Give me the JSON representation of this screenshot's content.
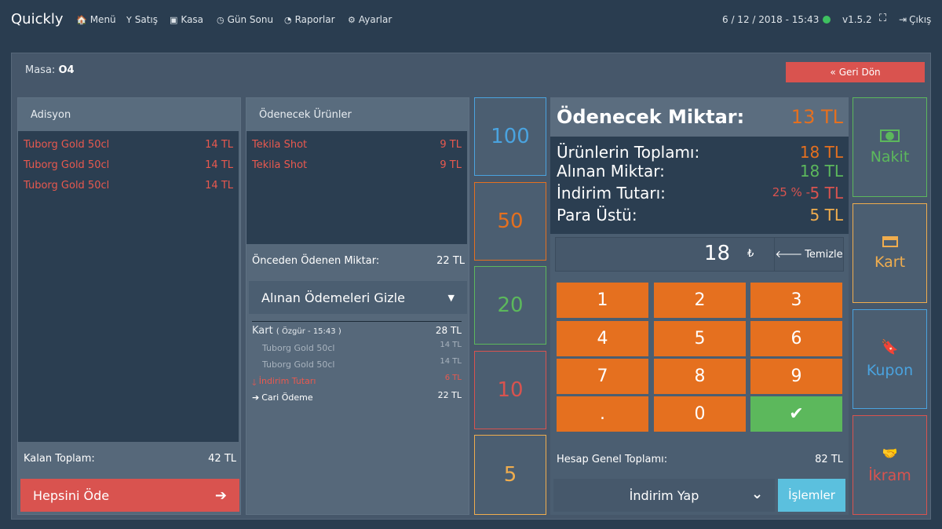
{
  "app": {
    "brand": "Quickly"
  },
  "nav": {
    "items": [
      {
        "icon": "home-icon",
        "glyph": "🏠",
        "label": "Menü"
      },
      {
        "icon": "cocktail-icon",
        "glyph": "🍸",
        "label": "Satış"
      },
      {
        "icon": "cash-icon",
        "glyph": "💵",
        "label": "Kasa"
      },
      {
        "icon": "clock-icon",
        "glyph": "◷",
        "label": "Gün Sonu"
      },
      {
        "icon": "pie-chart-icon",
        "glyph": "◔",
        "label": "Raporlar"
      },
      {
        "icon": "cogs-icon",
        "glyph": "⚙",
        "label": "Ayarlar"
      }
    ],
    "datetime": "6 / 12 / 2018 - 15:43",
    "version": "v1.5.2",
    "logout": "Çıkış"
  },
  "table": {
    "label": "Masa:",
    "name": "O4",
    "back_label": "Geri Dön"
  },
  "adisyon": {
    "title": "Adisyon",
    "items": [
      {
        "name": "Tuborg Gold 50cl",
        "price": "14 TL"
      },
      {
        "name": "Tuborg Gold 50cl",
        "price": "14 TL"
      },
      {
        "name": "Tuborg Gold 50cl",
        "price": "14 TL"
      }
    ],
    "remaining_label": "Kalan Toplam:",
    "remaining_value": "42 TL",
    "pay_all_label": "Hepsini Öde"
  },
  "to_pay": {
    "title": "Ödenecek Ürünler",
    "items": [
      {
        "name": "Tekila Shot",
        "price": "9 TL"
      },
      {
        "name": "Tekila Shot",
        "price": "9 TL"
      }
    ],
    "prev_paid_label": "Önceden Ödenen Miktar:",
    "prev_paid_value": "22 TL",
    "toggle_label": "Alınan Ödemeleri Gizle",
    "payments": {
      "method": "Kart",
      "meta": "( Özgür - 15:43 )",
      "total": "28 TL",
      "lines": [
        {
          "name": "Tuborg Gold 50cl",
          "price": "14 TL"
        },
        {
          "name": "Tuborg Gold 50cl",
          "price": "14 TL"
        }
      ],
      "discount_label": "İndirim Tutarı",
      "discount_value": "6 TL",
      "account_label": "Cari Ödeme",
      "account_value": "22 TL"
    }
  },
  "quick_amounts": [
    {
      "value": "100",
      "color": "#4aa3df"
    },
    {
      "value": "50",
      "color": "#e5701f"
    },
    {
      "value": "20",
      "color": "#5cb85c"
    },
    {
      "value": "10",
      "color": "#d9534f"
    },
    {
      "value": "5",
      "color": "#f0ad4e"
    }
  ],
  "summary": {
    "amount_label": "Ödenecek Miktar:",
    "amount_value": "13 TL",
    "total_label": "Ürünlerin Toplamı:",
    "total_value": "18 TL",
    "received_label": "Alınan Miktar:",
    "received_value": "18 TL",
    "discount_label": "İndirim Tutarı:",
    "discount_pct": "25 % -",
    "discount_value": "5 TL",
    "change_label": "Para Üstü:",
    "change_value": "5 TL"
  },
  "entry": {
    "value": "18",
    "currency": "₺",
    "clear_label": "Temizle"
  },
  "keypad": [
    "1",
    "2",
    "3",
    "4",
    "5",
    "6",
    "7",
    "8",
    "9",
    ".",
    "0",
    "✔"
  ],
  "footer": {
    "grand_total_label": "Hesap Genel Toplamı:",
    "grand_total_value": "82 TL",
    "discount_select": "İndirim Yap",
    "operations_label": "İşlemler"
  },
  "payment_methods": [
    {
      "label": "Nakit",
      "icon": "cash-icon",
      "color": "#5cb85c"
    },
    {
      "label": "Kart",
      "icon": "credit-card-icon",
      "color": "#f0ad4e"
    },
    {
      "label": "Kupon",
      "icon": "bookmark-icon",
      "color": "#4aa3df"
    },
    {
      "label": "İkram",
      "icon": "handshake-icon",
      "color": "#d9534f"
    }
  ]
}
